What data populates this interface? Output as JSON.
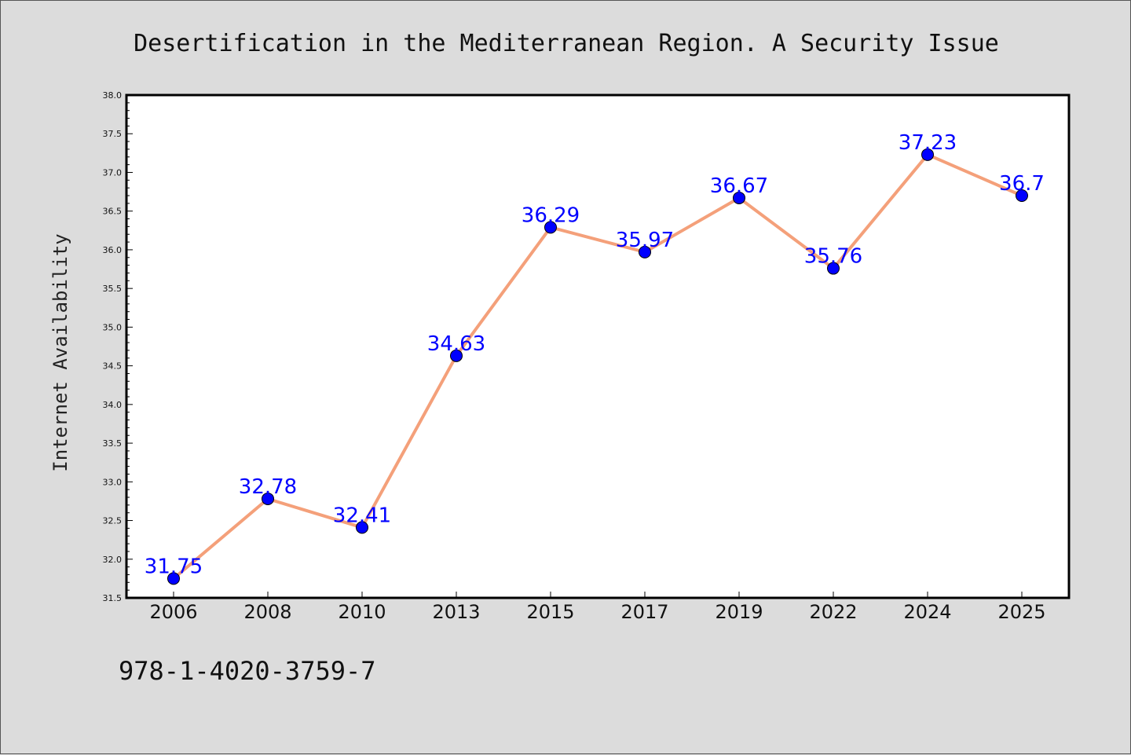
{
  "chart_data": {
    "type": "line",
    "title": "Desertification in the Mediterranean Region. A Security Issue",
    "xlabel": "",
    "ylabel": "Internet Availability",
    "categories": [
      "2006",
      "2008",
      "2010",
      "2013",
      "2015",
      "2017",
      "2019",
      "2022",
      "2024",
      "2025"
    ],
    "series": [
      {
        "values": [
          31.75,
          32.78,
          32.41,
          34.63,
          36.29,
          35.97,
          36.67,
          35.76,
          37.23,
          36.7
        ],
        "labels": [
          "31.75",
          "32.78",
          "32.41",
          "34.63",
          "36.29",
          "35.97",
          "36.67",
          "35.76",
          "37.23",
          "36.7"
        ],
        "line_color": "#f4a07a",
        "marker_color": "#0000ff"
      }
    ],
    "ylim": [
      31.5,
      38.0
    ],
    "yticks": [
      "31.5",
      "32.0",
      "32.5",
      "33.0",
      "33.5",
      "34.0",
      "34.5",
      "35.0",
      "35.5",
      "36.0",
      "36.5",
      "37.0",
      "37.5",
      "38.0"
    ],
    "grid": false,
    "legend": "none"
  },
  "footer": {
    "text": "978-1-4020-3759-7"
  },
  "colors": {
    "background": "#dcdcdc",
    "plot_background": "#ffffff"
  }
}
